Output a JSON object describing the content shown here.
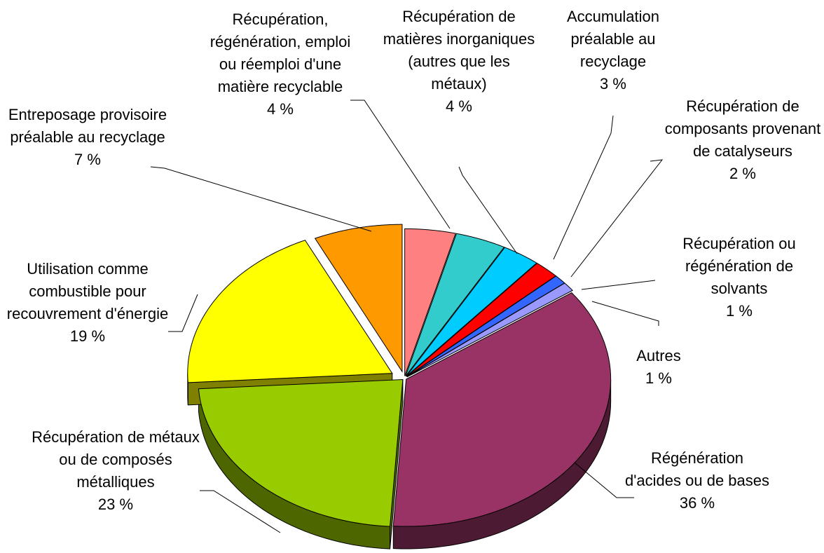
{
  "chart_data": {
    "type": "pie3d",
    "categories": [
      "Récupération, régénération, emploi ou réemploi d'une matière recyclable",
      "Récupération de matières inorganiques (autres que les métaux)",
      "Accumulation préalable au recyclage",
      "Récupération de composants provenant de catalyseurs",
      "Récupération ou régénération de solvants",
      "Autres",
      "Régénération d'acides ou de bases",
      "Récupération de métaux ou de composés métalliques",
      "Utilisation comme combustible pour recouvrement d'énergie",
      "Entreposage provisoire préalable au recyclage"
    ],
    "values": [
      4,
      4,
      3,
      2,
      1,
      1,
      36,
      23,
      19,
      7
    ],
    "value_labels": [
      "4 %",
      "4 %",
      "3 %",
      "2 %",
      "1 %",
      "1 %",
      "36 %",
      "23 %",
      "19 %",
      "7 %"
    ],
    "colors": [
      "#ff8080",
      "#33cccc",
      "#00ccff",
      "#ff0000",
      "#3366ff",
      "#9999ff",
      "#993366",
      "#99cc00",
      "#ffff00",
      "#ff9900"
    ]
  }
}
